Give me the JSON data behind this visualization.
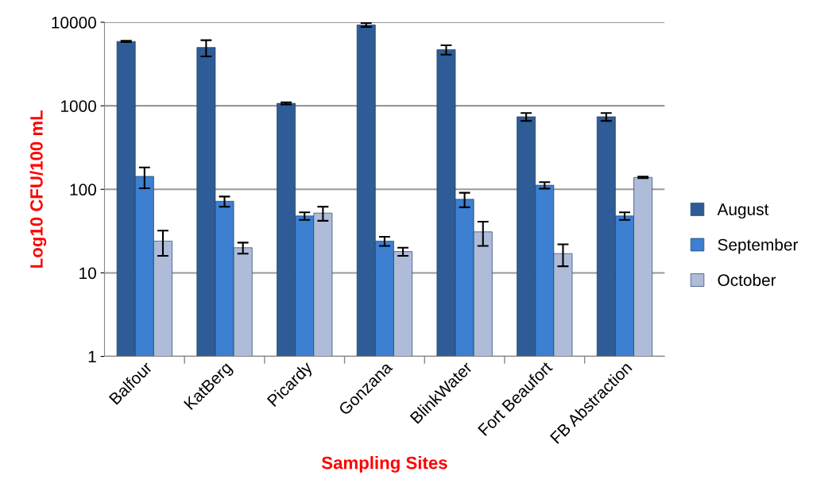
{
  "chart_data": {
    "type": "bar",
    "log": true,
    "xlabel": "Sampling Sites",
    "ylabel": "Log10 CFU/100 mL",
    "categories": [
      "Balfour",
      "KatBerg",
      "Picardy",
      "Gonzana",
      "BlinkWater",
      "Fort Beaufort",
      "FB Abstraction"
    ],
    "series": [
      {
        "name": "August",
        "color": "#2e5c96",
        "values": [
          5900,
          5000,
          1070,
          9300,
          4700,
          740,
          740
        ],
        "errors": [
          100,
          1100,
          30,
          500,
          600,
          80,
          80
        ]
      },
      {
        "name": "September",
        "color": "#3d7fd0",
        "values": [
          143,
          72,
          48,
          24,
          76,
          112,
          48
        ],
        "errors": [
          40,
          10,
          5,
          3,
          15,
          10,
          5
        ]
      },
      {
        "name": "October",
        "color": "#aebcd9",
        "values": [
          24,
          20,
          52,
          18,
          31,
          17,
          139
        ],
        "errors": [
          8,
          3,
          10,
          2,
          10,
          5,
          3
        ]
      }
    ],
    "ylim": [
      1,
      10000
    ],
    "yticks": [
      1,
      10,
      100,
      1000,
      10000
    ],
    "grid": "y",
    "legend": "right"
  }
}
